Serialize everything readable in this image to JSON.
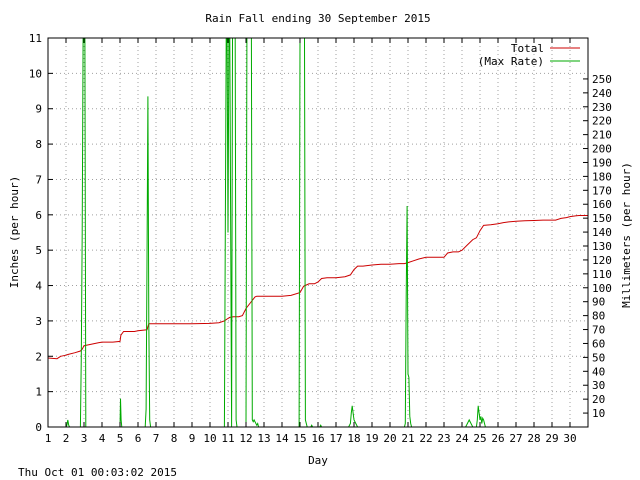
{
  "chart_data": {
    "type": "line",
    "title": "Rain Fall ending 30 September 2015",
    "xlabel": "Day",
    "ylabel_left": "Inches (per hour)",
    "ylabel_right": "Millimeters (per hour)",
    "footer_timestamp": "Thu Oct 01 00:03:02 2015",
    "xlim": [
      1,
      31
    ],
    "ylim_left": [
      0,
      11
    ],
    "ylim_right_mm": [
      0,
      279.4
    ],
    "x_ticks": [
      1,
      2,
      3,
      4,
      5,
      6,
      7,
      8,
      9,
      10,
      11,
      12,
      13,
      14,
      15,
      16,
      17,
      18,
      19,
      20,
      21,
      22,
      23,
      24,
      25,
      26,
      27,
      28,
      29,
      30
    ],
    "y_ticks_left": [
      0,
      1,
      2,
      3,
      4,
      5,
      6,
      7,
      8,
      9,
      10,
      11
    ],
    "y_ticks_right": [
      10,
      20,
      30,
      40,
      50,
      60,
      70,
      80,
      90,
      100,
      110,
      120,
      130,
      140,
      150,
      160,
      170,
      180,
      190,
      200,
      210,
      220,
      230,
      240,
      250
    ],
    "grid": true,
    "legend_position": "top-right",
    "series": [
      {
        "name": "Total",
        "color": "#cc0000",
        "x": [
          1.0,
          1.5,
          1.7,
          2.0,
          2.1,
          2.5,
          2.8,
          2.9,
          3.0,
          3.2,
          3.5,
          3.8,
          4.0,
          4.6,
          5.0,
          5.05,
          5.2,
          5.5,
          5.8,
          6.0,
          6.5,
          6.6,
          6.7,
          7.0,
          8.0,
          9.0,
          10.0,
          10.5,
          10.8,
          11.0,
          11.1,
          11.3,
          11.6,
          11.8,
          12.0,
          12.3,
          12.5,
          12.6,
          13.0,
          14.0,
          14.5,
          15.0,
          15.2,
          15.5,
          15.8,
          16.0,
          16.2,
          16.5,
          17.0,
          17.5,
          17.8,
          18.0,
          18.2,
          18.5,
          19.0,
          19.5,
          19.8,
          20.0,
          20.5,
          20.8,
          21.0,
          21.3,
          21.6,
          22.0,
          22.5,
          22.8,
          23.0,
          23.2,
          23.5,
          23.8,
          24.0,
          24.3,
          24.6,
          24.8,
          25.0,
          25.2,
          25.6,
          26.0,
          26.3,
          26.6,
          27.0,
          27.5,
          28.0,
          28.5,
          29.0,
          29.2,
          29.5,
          29.8,
          30.0,
          30.3,
          30.5,
          31.0
        ],
        "values": [
          1.95,
          1.93,
          2.0,
          2.03,
          2.05,
          2.1,
          2.15,
          2.2,
          2.3,
          2.32,
          2.35,
          2.38,
          2.4,
          2.4,
          2.42,
          2.6,
          2.7,
          2.7,
          2.7,
          2.72,
          2.75,
          2.92,
          2.92,
          2.92,
          2.92,
          2.92,
          2.93,
          2.95,
          3.0,
          3.07,
          3.1,
          3.12,
          3.12,
          3.15,
          3.35,
          3.55,
          3.68,
          3.7,
          3.7,
          3.7,
          3.72,
          3.8,
          3.98,
          4.05,
          4.05,
          4.1,
          4.2,
          4.22,
          4.22,
          4.25,
          4.3,
          4.45,
          4.55,
          4.55,
          4.58,
          4.6,
          4.6,
          4.6,
          4.62,
          4.62,
          4.65,
          4.7,
          4.75,
          4.8,
          4.8,
          4.8,
          4.8,
          4.92,
          4.95,
          4.95,
          5.0,
          5.15,
          5.3,
          5.35,
          5.55,
          5.7,
          5.72,
          5.75,
          5.78,
          5.8,
          5.82,
          5.83,
          5.84,
          5.85,
          5.85,
          5.85,
          5.9,
          5.92,
          5.95,
          5.97,
          5.98,
          5.98
        ]
      },
      {
        "name": "(Max Rate)",
        "color": "#00aa00",
        "x": [
          1.0,
          2.0,
          2.05,
          2.1,
          2.15,
          2.2,
          2.8,
          2.85,
          2.9,
          2.95,
          3.0,
          3.05,
          3.1,
          4.9,
          5.0,
          5.03,
          5.06,
          5.1,
          6.4,
          6.45,
          6.5,
          6.55,
          6.6,
          6.65,
          6.7,
          6.75,
          10.8,
          10.85,
          10.9,
          10.95,
          11.0,
          11.05,
          11.1,
          11.2,
          11.25,
          11.3,
          11.35,
          11.4,
          11.45,
          11.5,
          12.0,
          12.05,
          12.1,
          12.15,
          12.2,
          12.25,
          12.3,
          12.35,
          12.4,
          12.45,
          12.5,
          12.55,
          12.6,
          12.65,
          12.7,
          14.95,
          15.0,
          15.05,
          15.1,
          15.15,
          15.2,
          15.25,
          15.3,
          15.35,
          15.4,
          15.6,
          15.65,
          15.7,
          16.1,
          16.15,
          16.2,
          17.7,
          17.8,
          17.85,
          17.9,
          17.95,
          18.0,
          18.1,
          18.2,
          20.8,
          20.85,
          20.9,
          20.95,
          21.0,
          21.05,
          21.1,
          21.15,
          21.2,
          24.2,
          24.3,
          24.4,
          24.5,
          24.6,
          24.8,
          24.85,
          24.9,
          24.95,
          25.0,
          25.05,
          25.1,
          25.15,
          25.2,
          25.3,
          25.35,
          31.0
        ],
        "values": [
          0,
          0,
          0.05,
          0.2,
          0.05,
          0,
          0,
          2.0,
          5.5,
          11,
          11,
          11,
          0,
          0,
          0,
          0.8,
          0.2,
          0,
          0,
          0.5,
          4.7,
          9.35,
          3.0,
          0.2,
          0,
          0,
          0,
          5.5,
          11,
          11,
          5.5,
          11,
          11,
          0,
          11,
          11,
          11,
          11,
          0.2,
          0,
          0,
          11,
          11,
          11,
          11,
          11,
          11,
          0.2,
          0.15,
          0.2,
          0.15,
          0.1,
          0.05,
          0.1,
          0,
          0,
          11,
          11,
          11,
          11,
          11,
          11,
          0.2,
          0.1,
          0,
          0,
          0.05,
          0,
          0,
          0.05,
          0,
          0,
          0.1,
          0.4,
          0.6,
          0.4,
          0.2,
          0.1,
          0,
          0,
          0.1,
          3.7,
          6.25,
          1.5,
          1.4,
          0.3,
          0.1,
          0,
          0,
          0.1,
          0.2,
          0.1,
          0,
          0,
          0.2,
          0.6,
          0.4,
          0.2,
          0.3,
          0.1,
          0.25,
          0.2,
          0,
          0,
          0
        ]
      }
    ]
  }
}
